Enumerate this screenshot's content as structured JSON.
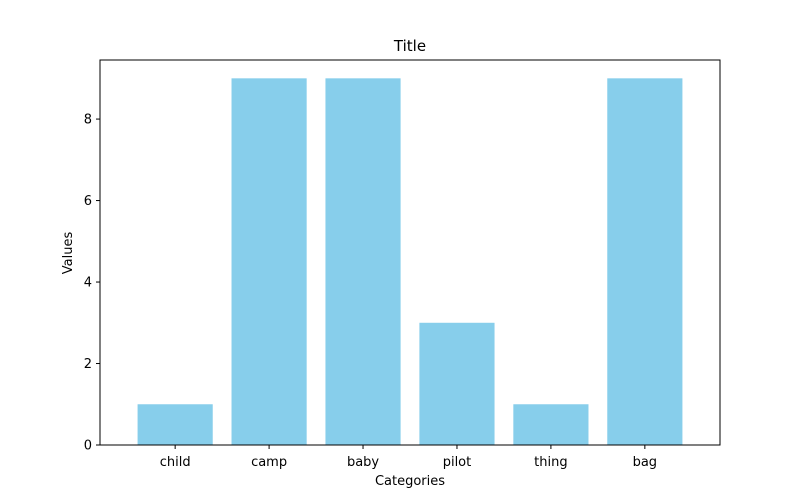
{
  "chart_data": {
    "type": "bar",
    "title": "Title",
    "xlabel": "Categories",
    "ylabel": "Values",
    "categories": [
      "child",
      "camp",
      "baby",
      "pilot",
      "thing",
      "bag"
    ],
    "values": [
      1,
      9,
      9,
      3,
      1,
      9
    ],
    "ylim": [
      0,
      9.45
    ],
    "yticks": [
      0,
      2,
      4,
      6,
      8
    ],
    "grid": false,
    "bar_color": "#87ceeb"
  }
}
